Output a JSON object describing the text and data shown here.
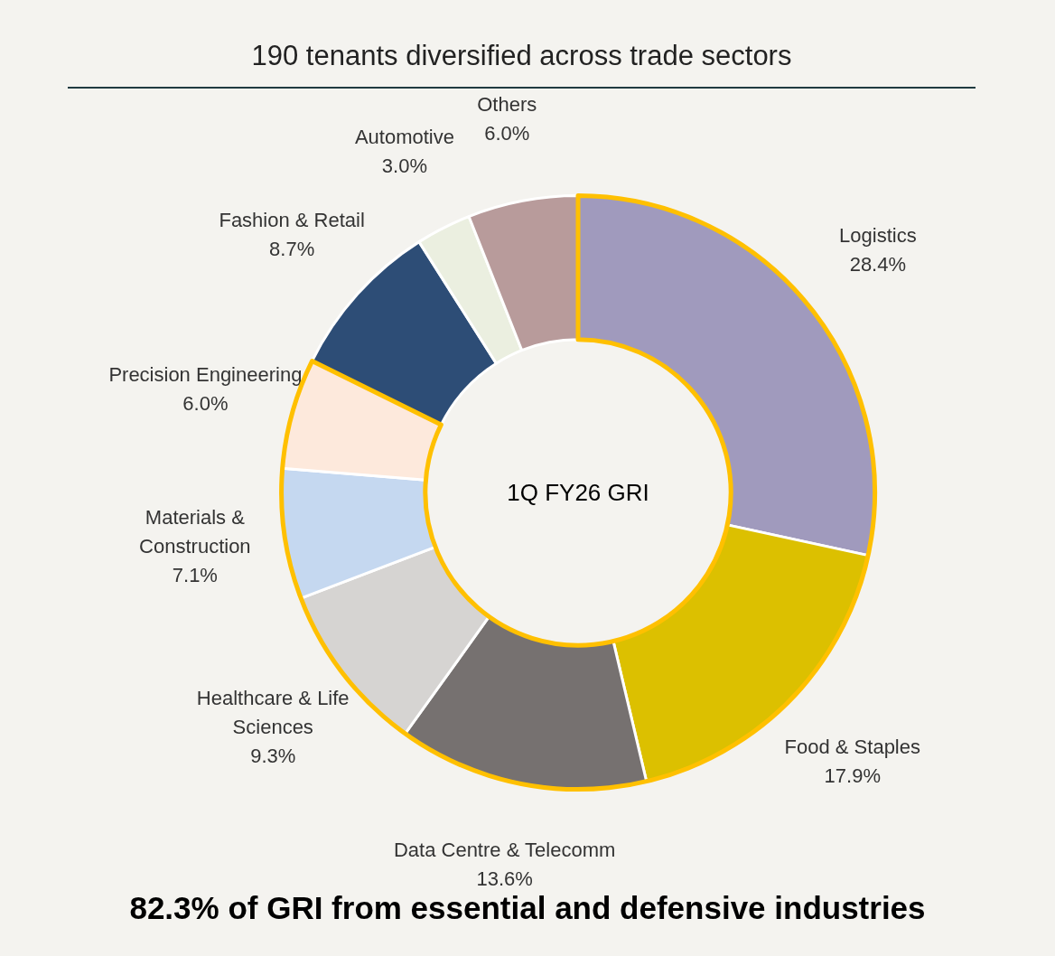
{
  "chart_data": {
    "type": "donut",
    "title": "190 tenants diversified across trade sectors",
    "categories": [
      "Logistics",
      "Food & Staples",
      "Data Centre & Telecomm",
      "Healthcare & Life Sciences",
      "Materials & Construction",
      "Precision Engineering",
      "Fashion & Retail",
      "Automotive",
      "Others"
    ],
    "values": [
      28.4,
      17.9,
      13.6,
      9.3,
      7.1,
      6.0,
      8.7,
      3.0,
      6.0
    ],
    "value_labels": [
      "28.4%",
      "17.9%",
      "13.6%",
      "9.3%",
      "7.1%",
      "6.0%",
      "8.7%",
      "3.0%",
      "6.0%"
    ],
    "colors": [
      "#a09abd",
      "#dcc000",
      "#767170",
      "#d6d4d2",
      "#c5d8f0",
      "#fde9dc",
      "#2d4d76",
      "#ebefe0",
      "#b89b9b"
    ],
    "annotations": [
      "1Q FY26 GRI",
      "82.3% of GRI from essential and defensive industries"
    ],
    "legend": false
  }
}
